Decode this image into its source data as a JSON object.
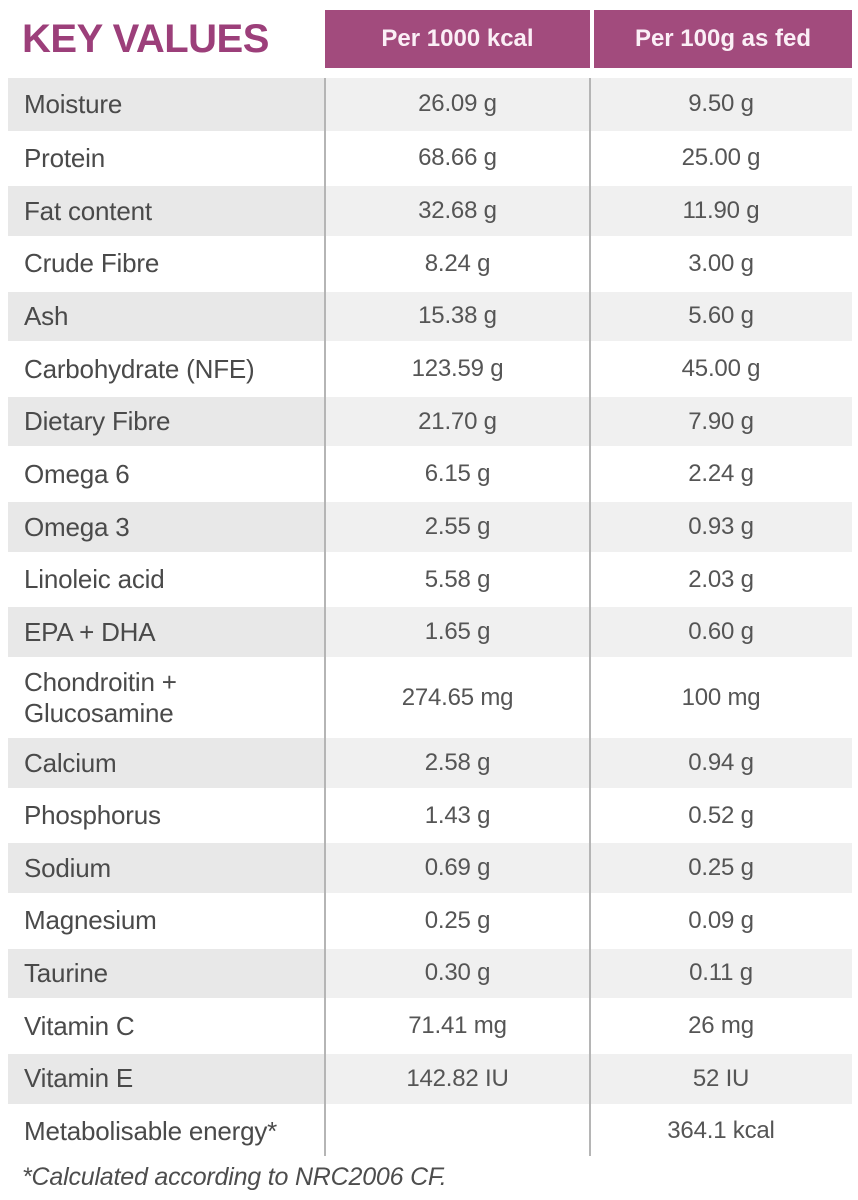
{
  "header": {
    "title": "KEY VALUES",
    "col_per_1000_kcal": "Per 1000 kcal",
    "col_per_100g": "Per 100g as fed"
  },
  "rows": [
    {
      "label": "Moisture",
      "per_1000_kcal": "26.09 g",
      "per_100g_as_fed": "9.50 g"
    },
    {
      "label": "Protein",
      "per_1000_kcal": "68.66 g",
      "per_100g_as_fed": "25.00 g"
    },
    {
      "label": "Fat content",
      "per_1000_kcal": "32.68 g",
      "per_100g_as_fed": "11.90 g"
    },
    {
      "label": "Crude Fibre",
      "per_1000_kcal": "8.24 g",
      "per_100g_as_fed": "3.00 g"
    },
    {
      "label": "Ash",
      "per_1000_kcal": "15.38 g",
      "per_100g_as_fed": "5.60 g"
    },
    {
      "label": "Carbohydrate (NFE)",
      "per_1000_kcal": "123.59 g",
      "per_100g_as_fed": "45.00 g"
    },
    {
      "label": "Dietary Fibre",
      "per_1000_kcal": "21.70 g",
      "per_100g_as_fed": "7.90 g"
    },
    {
      "label": "Omega 6",
      "per_1000_kcal": "6.15 g",
      "per_100g_as_fed": "2.24 g"
    },
    {
      "label": "Omega 3",
      "per_1000_kcal": "2.55 g",
      "per_100g_as_fed": "0.93 g"
    },
    {
      "label": "Linoleic acid",
      "per_1000_kcal": "5.58 g",
      "per_100g_as_fed": "2.03 g"
    },
    {
      "label": "EPA + DHA",
      "per_1000_kcal": "1.65 g",
      "per_100g_as_fed": "0.60 g"
    },
    {
      "label": "Chondroitin +\nGlucosamine",
      "per_1000_kcal": "274.65 mg",
      "per_100g_as_fed": "100 mg"
    },
    {
      "label": "Calcium",
      "per_1000_kcal": "2.58 g",
      "per_100g_as_fed": "0.94 g"
    },
    {
      "label": "Phosphorus",
      "per_1000_kcal": "1.43 g",
      "per_100g_as_fed": "0.52 g"
    },
    {
      "label": "Sodium",
      "per_1000_kcal": "0.69 g",
      "per_100g_as_fed": "0.25 g"
    },
    {
      "label": "Magnesium",
      "per_1000_kcal": "0.25 g",
      "per_100g_as_fed": "0.09 g"
    },
    {
      "label": "Taurine",
      "per_1000_kcal": "0.30 g",
      "per_100g_as_fed": "0.11 g"
    },
    {
      "label": "Vitamin C",
      "per_1000_kcal": "71.41 mg",
      "per_100g_as_fed": "26 mg"
    },
    {
      "label": "Vitamin E",
      "per_1000_kcal": "142.82 IU",
      "per_100g_as_fed": "52 IU"
    },
    {
      "label": "Metabolisable energy*",
      "per_1000_kcal": "",
      "per_100g_as_fed": "364.1 kcal"
    }
  ],
  "footnote": "*Calculated according to NRC2006 CF.",
  "colors": {
    "accent": "#a24b7d",
    "title": "#9c3f7a",
    "stripe_dark": "#e8e8e8",
    "stripe_light": "#f0f0f0",
    "divider": "#b5b5b5"
  }
}
